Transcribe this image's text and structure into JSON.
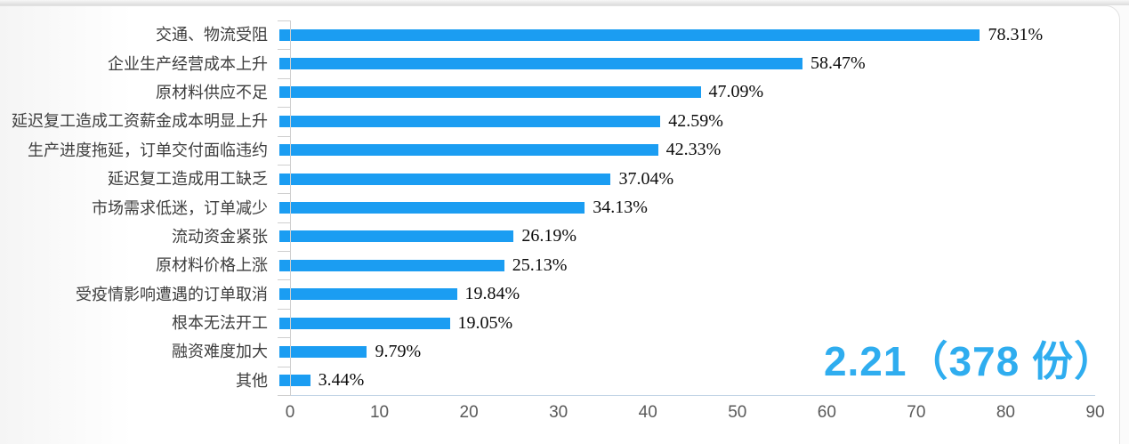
{
  "chart_data": {
    "type": "bar",
    "orientation": "horizontal",
    "title": "",
    "xlabel": "",
    "ylabel": "",
    "categories": [
      "交通、物流受阻",
      "企业生产经营成本上升",
      "原材料供应不足",
      "延迟复工造成工资薪金成本明显上升",
      "生产进度拖延，订单交付面临违约",
      "延迟复工造成用工缺乏",
      "市场需求低迷，订单减少",
      "流动资金紧张",
      "原材料价格上涨",
      "受疫情影响遭遇的订单取消",
      "根本无法开工",
      "融资难度加大",
      "其他"
    ],
    "values": [
      78.31,
      58.47,
      47.09,
      42.59,
      42.33,
      37.04,
      34.13,
      26.19,
      25.13,
      19.84,
      19.05,
      9.79,
      3.44
    ],
    "value_labels": [
      "78.31%",
      "58.47%",
      "47.09%",
      "42.59%",
      "42.33%",
      "37.04%",
      "34.13%",
      "26.19%",
      "25.13%",
      "19.84%",
      "19.05%",
      "9.79%",
      "3.44%"
    ],
    "xlim": [
      0,
      90
    ],
    "x_ticks": [
      0,
      10,
      20,
      30,
      40,
      50,
      60,
      70,
      80,
      90
    ],
    "grid": false,
    "legend": "none",
    "bar_color": "#1b9df2",
    "label_color": "#3d3d3d",
    "value_color": "#0b0b0b",
    "tick_color": "#5a5a5a",
    "axis_color": "#cfcfcf",
    "annotation": {
      "text": "2.21（378 份）",
      "color": "#2fadef"
    }
  }
}
